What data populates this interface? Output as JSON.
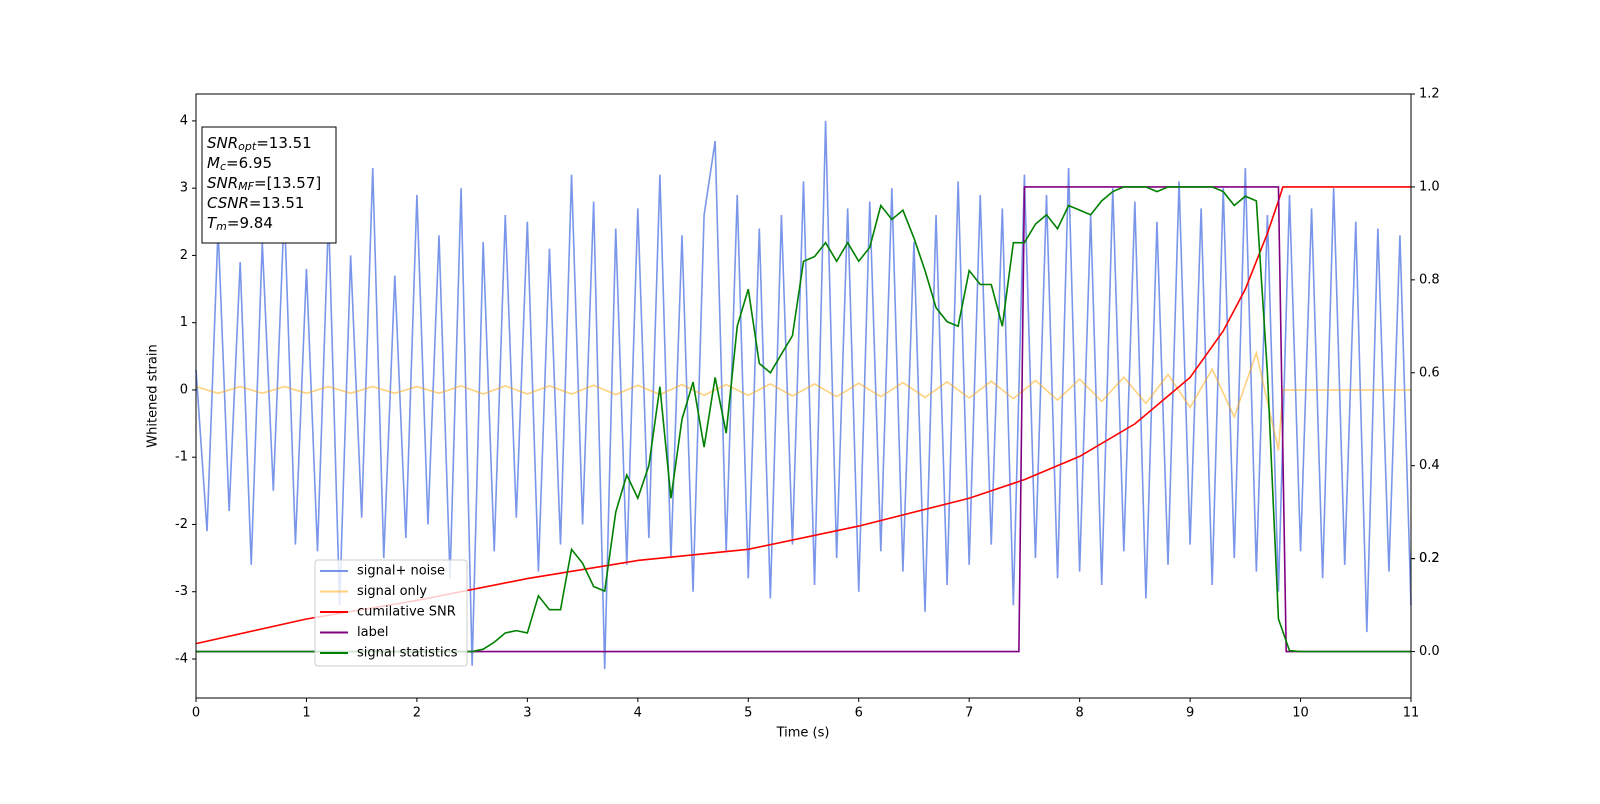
{
  "chart_data": {
    "type": "line",
    "xlabel": "Time (s)",
    "ylabel": "Whitened strain",
    "xlim": [
      0,
      11
    ],
    "xticks": [
      0,
      1,
      2,
      3,
      4,
      5,
      6,
      7,
      8,
      9,
      10,
      11
    ],
    "ylim": [
      -4.58,
      4.4
    ],
    "yticks": [
      -4,
      -3,
      -2,
      -1,
      0,
      1,
      2,
      3,
      4
    ],
    "y2lim": [
      -0.1,
      1.2
    ],
    "y2ticks": [
      {
        "value": 0,
        "label": "0.0"
      },
      0.2,
      0.4,
      0.6,
      0.8,
      {
        "value": 1,
        "label": "1.0"
      },
      0.2,
      1.2
    ],
    "annotation": {
      "lines": [
        {
          "base": "SNR",
          "sub": "opt",
          "text": "=13.51"
        },
        {
          "base": "M",
          "sub": "c",
          "text": "=6.95"
        },
        {
          "base": "SNR",
          "sub": "MF",
          "text": "=[13.57]"
        },
        {
          "base": "CSNR",
          "text": "=13.51"
        },
        {
          "base": "T",
          "sub": "m",
          "text": "=9.84"
        }
      ]
    },
    "series": [
      {
        "name": "signal+ noise",
        "color": "#4169e1",
        "alpha": 0.7,
        "x": [
          0,
          0.1,
          0.2,
          0.3,
          0.4,
          0.5,
          0.6,
          0.7,
          0.8,
          0.9,
          1,
          1.1,
          1.2,
          1.3,
          1.4,
          1.5,
          1.6,
          1.7,
          1.8,
          1.9,
          2,
          2.1,
          2.2,
          2.3,
          2.4,
          2.5,
          2.6,
          2.7,
          2.8,
          2.9,
          3,
          3.1,
          3.2,
          3.3,
          3.4,
          3.5,
          3.6,
          3.7,
          3.8,
          3.9,
          4,
          4.1,
          4.2,
          4.3,
          4.4,
          4.5,
          4.6,
          4.7,
          4.8,
          4.9,
          5,
          5.1,
          5.2,
          5.3,
          5.4,
          5.5,
          5.6,
          5.7,
          5.8,
          5.9,
          6,
          6.1,
          6.2,
          6.3,
          6.4,
          6.5,
          6.6,
          6.7,
          6.8,
          6.9,
          7,
          7.1,
          7.2,
          7.3,
          7.4,
          7.5,
          7.6,
          7.7,
          7.8,
          7.9,
          8,
          8.1,
          8.2,
          8.3,
          8.4,
          8.5,
          8.6,
          8.7,
          8.8,
          8.9,
          9,
          9.1,
          9.2,
          9.3,
          9.4,
          9.5,
          9.6,
          9.7,
          9.8,
          9.9,
          10,
          10.1,
          10.2,
          10.3,
          10.4,
          10.5,
          10.6,
          10.7,
          10.8,
          10.9,
          11
        ],
        "values": [
          0.3,
          -2.1,
          2.4,
          -1.8,
          1.9,
          -2.6,
          2.2,
          -1.5,
          2.7,
          -2.3,
          1.8,
          -2.4,
          2.6,
          -3.2,
          2.0,
          -1.9,
          3.3,
          -2.5,
          1.7,
          -2.2,
          2.9,
          -2.0,
          2.3,
          -2.8,
          3.0,
          -4.1,
          2.2,
          -2.4,
          2.6,
          -1.9,
          2.5,
          -2.7,
          2.1,
          -2.3,
          3.2,
          -2.0,
          2.8,
          -4.15,
          2.4,
          -2.6,
          2.7,
          -2.2,
          3.2,
          -2.5,
          2.3,
          -3.0,
          2.6,
          3.7,
          -2.4,
          2.9,
          -2.8,
          2.4,
          -3.1,
          2.6,
          -2.3,
          3.1,
          -2.9,
          4.0,
          -2.5,
          2.7,
          -3.0,
          2.8,
          -2.4,
          3.0,
          -2.7,
          2.2,
          -3.3,
          2.6,
          -2.9,
          3.1,
          -2.6,
          2.9,
          -2.3,
          2.7,
          -3.2,
          3.2,
          -2.5,
          2.9,
          -2.8,
          3.3,
          -2.7,
          2.6,
          -2.9,
          3.0,
          -2.4,
          2.8,
          -3.1,
          2.5,
          -2.6,
          3.1,
          -2.3,
          2.7,
          -2.9,
          3.0,
          -2.5,
          3.3,
          -2.7,
          2.6,
          -3.0,
          2.9,
          -2.4,
          2.7,
          -2.8,
          3.0,
          -2.6,
          2.5,
          -3.6,
          2.4,
          -2.7,
          2.3,
          -3.2
        ]
      },
      {
        "name": "signal only",
        "color": "#ffa500",
        "alpha": 0.5,
        "x": [
          0,
          0.2,
          0.4,
          0.6,
          0.8,
          1,
          1.2,
          1.4,
          1.6,
          1.8,
          2,
          2.2,
          2.4,
          2.6,
          2.8,
          3,
          3.2,
          3.4,
          3.6,
          3.8,
          4,
          4.2,
          4.4,
          4.6,
          4.8,
          5,
          5.2,
          5.4,
          5.6,
          5.8,
          6,
          6.2,
          6.4,
          6.6,
          6.8,
          7,
          7.2,
          7.4,
          7.6,
          7.8,
          8,
          8.2,
          8.4,
          8.6,
          8.8,
          9,
          9.2,
          9.4,
          9.6,
          9.8,
          9.84,
          11
        ],
        "values": [
          0.05,
          -0.05,
          0.05,
          -0.05,
          0.05,
          -0.05,
          0.05,
          -0.05,
          0.05,
          -0.05,
          0.05,
          -0.05,
          0.06,
          -0.06,
          0.06,
          -0.06,
          0.06,
          -0.06,
          0.07,
          -0.07,
          0.07,
          -0.07,
          0.08,
          -0.08,
          0.08,
          -0.08,
          0.09,
          -0.09,
          0.09,
          -0.1,
          0.1,
          -0.1,
          0.11,
          -0.11,
          0.12,
          -0.12,
          0.13,
          -0.13,
          0.14,
          -0.15,
          0.16,
          -0.17,
          0.19,
          -0.2,
          0.23,
          -0.26,
          0.31,
          -0.4,
          0.55,
          -0.9,
          0,
          0
        ]
      },
      {
        "name": "cumilative SNR",
        "color": "#ff0000",
        "alpha": 1,
        "axis": "y2",
        "x": [
          0,
          1,
          2,
          3,
          4,
          5,
          6,
          7,
          7.5,
          8,
          8.5,
          9,
          9.3,
          9.5,
          9.7,
          9.8,
          9.84,
          11
        ],
        "values": [
          0.017,
          0.07,
          0.11,
          0.157,
          0.196,
          0.22,
          0.27,
          0.33,
          0.37,
          0.42,
          0.49,
          0.59,
          0.69,
          0.78,
          0.9,
          0.97,
          1.0,
          1.0
        ]
      },
      {
        "name": "label",
        "color": "#800080",
        "alpha": 1,
        "axis": "y2",
        "x": [
          0,
          7.45,
          7.5,
          9.8,
          9.87,
          11
        ],
        "values": [
          0,
          0,
          1,
          1,
          0,
          0
        ]
      },
      {
        "name": "signal statistics",
        "color": "#008000",
        "alpha": 1,
        "axis": "y2",
        "x": [
          0,
          2.5,
          2.6,
          2.7,
          2.8,
          2.9,
          3,
          3.1,
          3.2,
          3.3,
          3.4,
          3.5,
          3.6,
          3.7,
          3.8,
          3.9,
          4,
          4.1,
          4.2,
          4.3,
          4.4,
          4.5,
          4.6,
          4.7,
          4.8,
          4.9,
          5,
          5.1,
          5.2,
          5.3,
          5.4,
          5.5,
          5.6,
          5.7,
          5.8,
          5.9,
          6,
          6.1,
          6.2,
          6.3,
          6.4,
          6.5,
          6.6,
          6.7,
          6.8,
          6.9,
          7,
          7.1,
          7.2,
          7.3,
          7.4,
          7.5,
          7.6,
          7.7,
          7.8,
          7.9,
          8,
          8.1,
          8.2,
          8.3,
          8.4,
          8.5,
          8.6,
          8.7,
          8.8,
          8.9,
          9,
          9.1,
          9.2,
          9.3,
          9.4,
          9.5,
          9.6,
          9.7,
          9.8,
          9.9,
          10,
          11
        ],
        "values": [
          0,
          0,
          0.005,
          0.02,
          0.04,
          0.045,
          0.04,
          0.12,
          0.09,
          0.09,
          0.22,
          0.19,
          0.14,
          0.13,
          0.3,
          0.38,
          0.33,
          0.4,
          0.57,
          0.33,
          0.5,
          0.58,
          0.44,
          0.59,
          0.47,
          0.7,
          0.78,
          0.62,
          0.6,
          0.64,
          0.68,
          0.84,
          0.85,
          0.88,
          0.84,
          0.88,
          0.84,
          0.87,
          0.96,
          0.93,
          0.95,
          0.89,
          0.82,
          0.74,
          0.71,
          0.7,
          0.82,
          0.79,
          0.79,
          0.7,
          0.88,
          0.88,
          0.92,
          0.94,
          0.91,
          0.96,
          0.95,
          0.94,
          0.97,
          0.99,
          1.0,
          1.0,
          1.0,
          0.99,
          1.0,
          1.0,
          1.0,
          1.0,
          1.0,
          0.99,
          0.96,
          0.98,
          0.97,
          0.6,
          0.07,
          0.002,
          0,
          0
        ]
      }
    ],
    "legend": "lower left"
  }
}
